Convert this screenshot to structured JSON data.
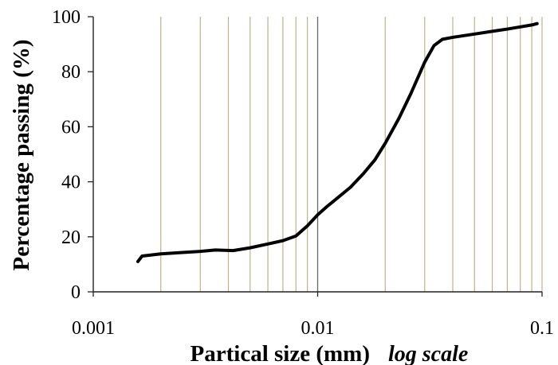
{
  "chart_data": {
    "type": "line",
    "title": "",
    "xlabel": "Partical size (mm)",
    "xlabel_note": "log scale",
    "ylabel": "Percentage passing (%)",
    "xscale": "log",
    "xlim": [
      0.001,
      0.1
    ],
    "ylim": [
      0,
      100
    ],
    "grid": "vertical minor and major lines on log x axis",
    "grid_color": "#c2b28a",
    "major_grid_color": "#666666",
    "line_color": "#000000",
    "x_ticks": [
      {
        "value": 0.001,
        "label": "0.001"
      },
      {
        "value": 0.01,
        "label": "0.01"
      },
      {
        "value": 0.1,
        "label": "0.1"
      }
    ],
    "y_ticks": [
      {
        "value": 0,
        "label": "0"
      },
      {
        "value": 20,
        "label": "20"
      },
      {
        "value": 40,
        "label": "40"
      },
      {
        "value": 60,
        "label": "60"
      },
      {
        "value": 80,
        "label": "80"
      },
      {
        "value": 100,
        "label": "100"
      }
    ],
    "series": [
      {
        "x": [
          0.00158,
          0.00165,
          0.002,
          0.0025,
          0.003,
          0.0035,
          0.0042,
          0.005,
          0.006,
          0.007,
          0.008,
          0.009,
          0.01,
          0.011,
          0.012,
          0.014,
          0.016,
          0.018,
          0.02,
          0.023,
          0.026,
          0.03,
          0.033,
          0.036,
          0.04,
          0.05,
          0.06,
          0.07,
          0.08,
          0.09,
          0.095
        ],
        "y": [
          11.0,
          13.0,
          13.8,
          14.3,
          14.7,
          15.2,
          15.0,
          16.0,
          17.4,
          18.6,
          20.3,
          24.0,
          28.0,
          31.0,
          33.5,
          38.0,
          43.0,
          48.0,
          54.0,
          63.0,
          72.0,
          83.5,
          89.5,
          91.8,
          92.5,
          93.7,
          94.7,
          95.5,
          96.3,
          97.0,
          97.5
        ]
      }
    ]
  }
}
